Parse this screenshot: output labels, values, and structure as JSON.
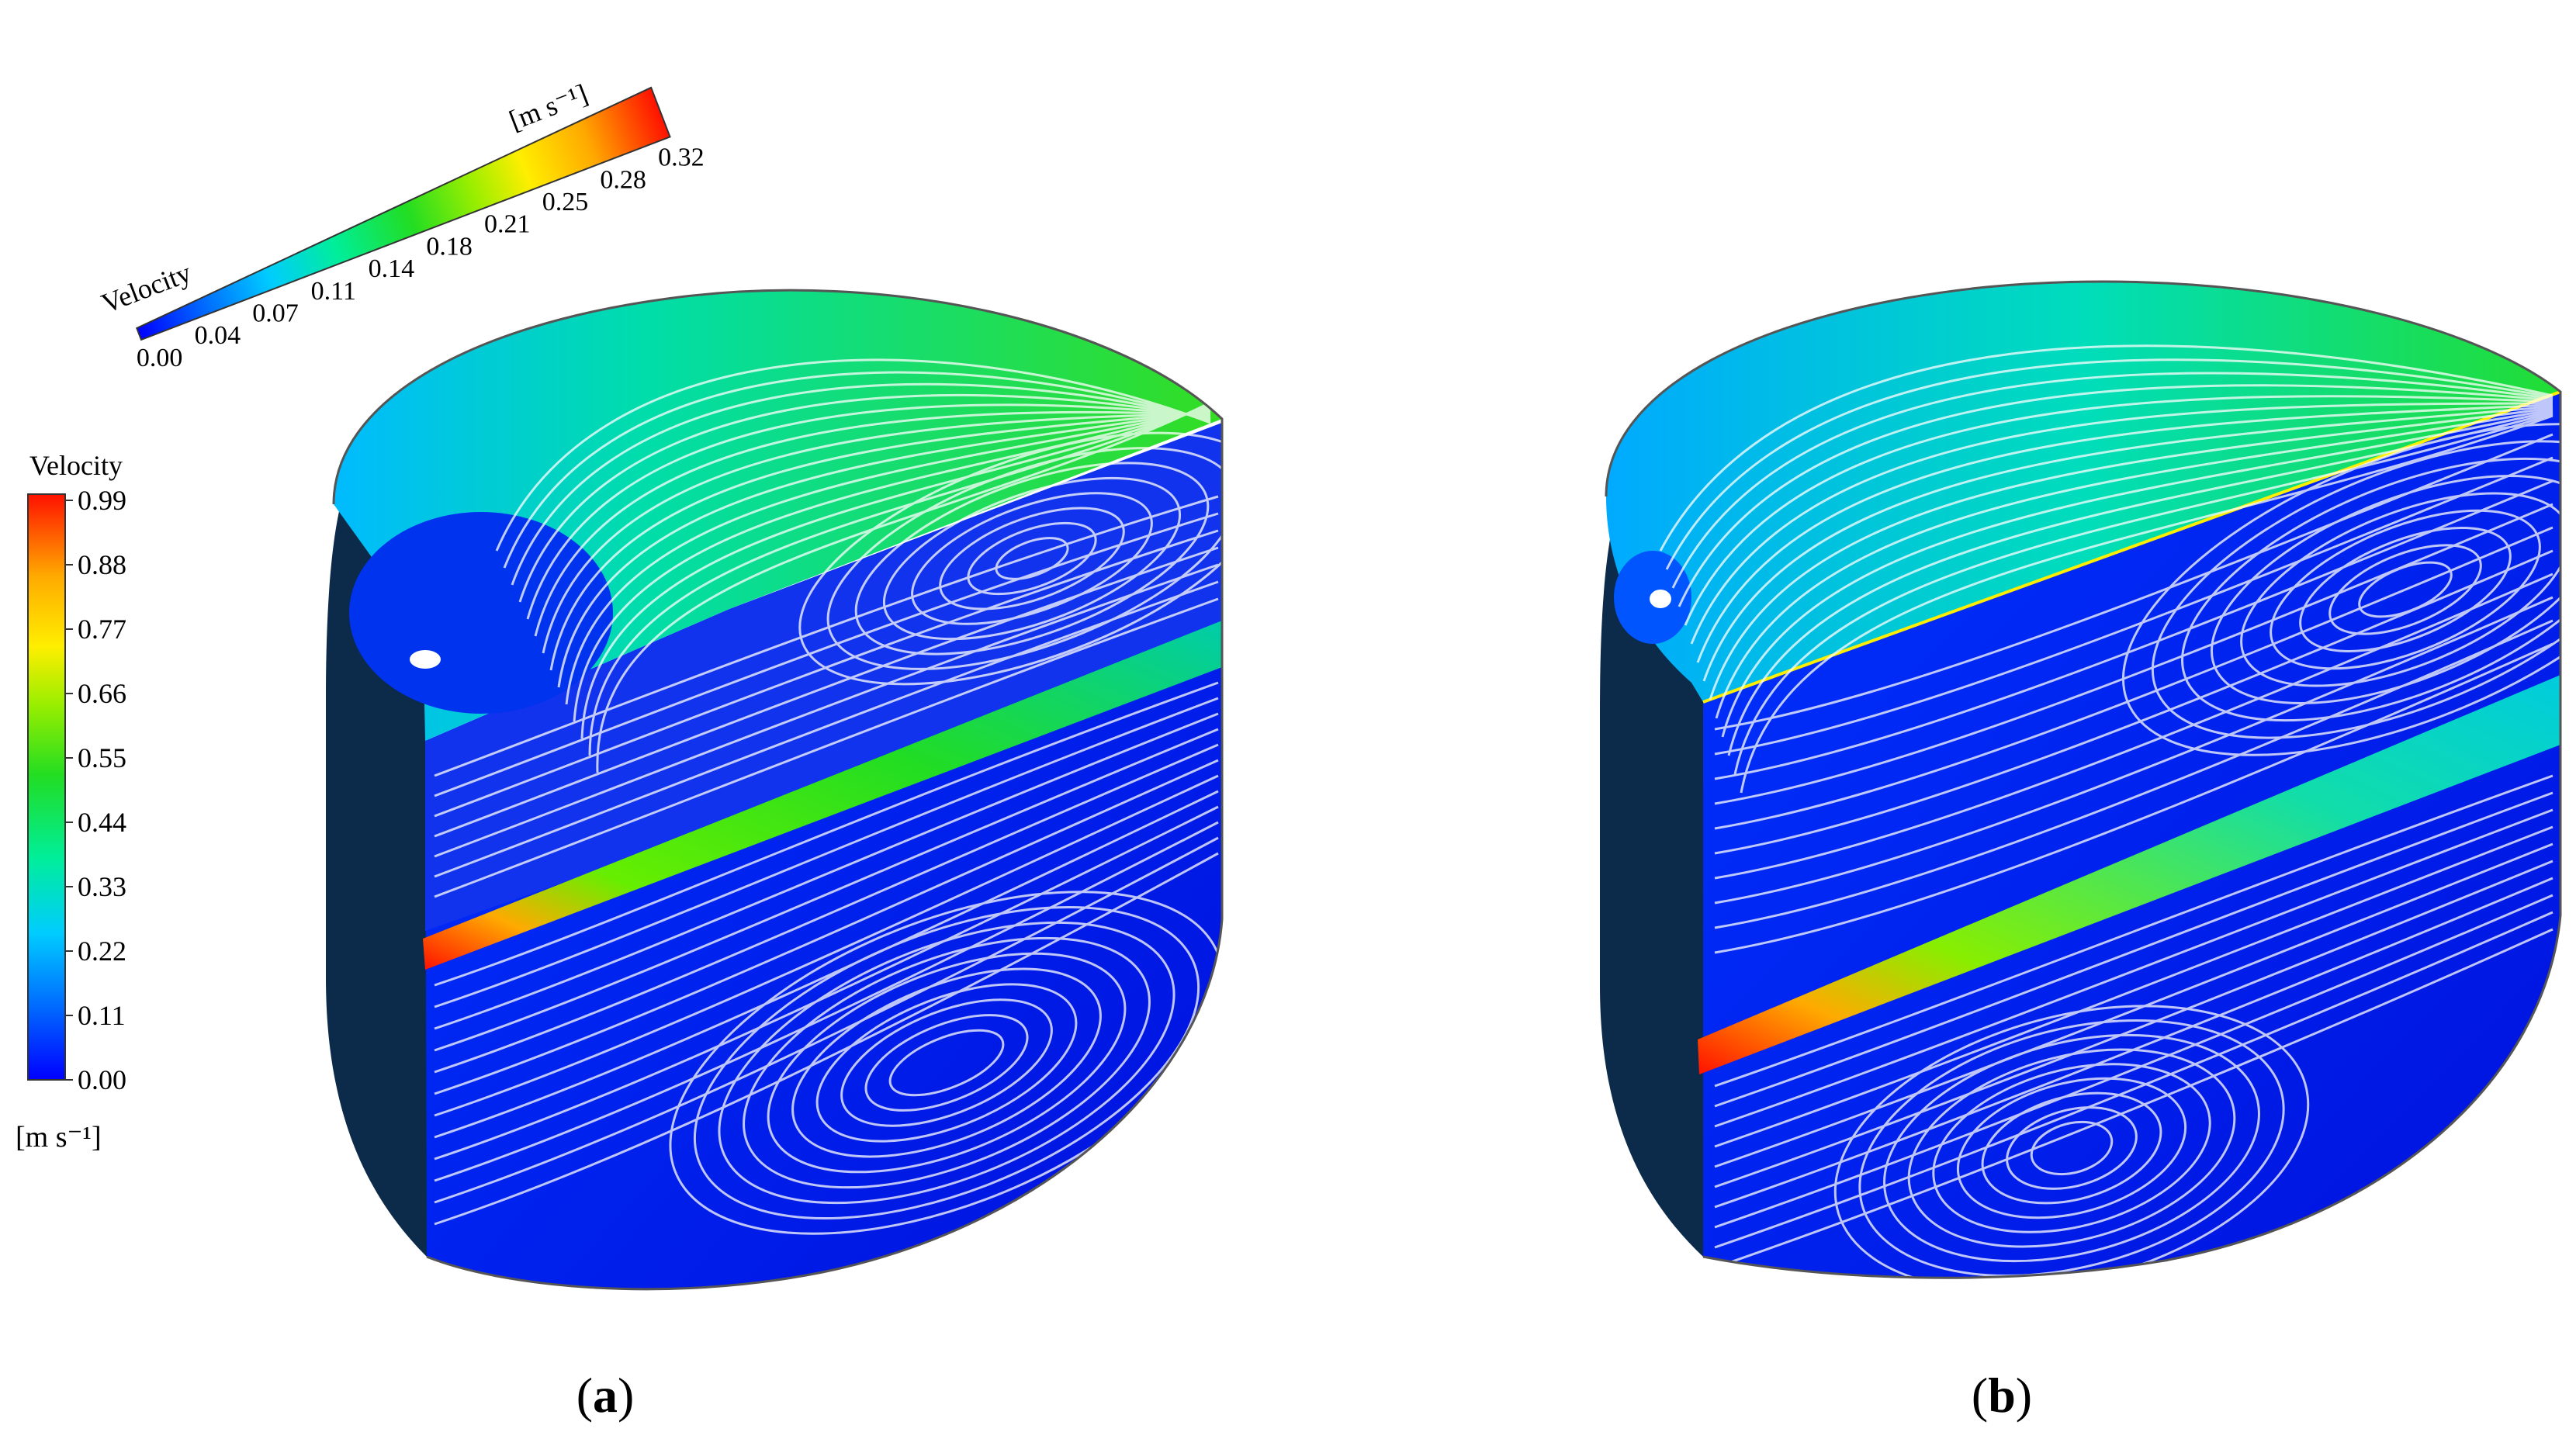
{
  "legend_tilted": {
    "title": "Velocity",
    "unit": "[m s⁻¹]",
    "ticks": [
      "0.00",
      "0.04",
      "0.07",
      "0.11",
      "0.14",
      "0.18",
      "0.21",
      "0.25",
      "0.28",
      "0.32"
    ]
  },
  "legend_vertical": {
    "title": "Velocity",
    "unit": "[m s⁻¹]",
    "ticks": [
      "0.99",
      "0.88",
      "0.77",
      "0.66",
      "0.55",
      "0.44",
      "0.33",
      "0.22",
      "0.11",
      "0.00"
    ]
  },
  "panels": [
    {
      "label_open": "(",
      "label_letter": "a",
      "label_close": ")"
    },
    {
      "label_open": "(",
      "label_letter": "b",
      "label_close": ")"
    }
  ],
  "colors": {
    "background": "#ffffff",
    "dark_side": "#0c2a4a",
    "jet_hot": "#ff2a00",
    "top_flow": "#22cc33",
    "lower_flow": "#0022ee",
    "outline": "#555555"
  },
  "colormap": [
    "#0000ff",
    "#0077ff",
    "#00ccff",
    "#00ffaa",
    "#33ff33",
    "#aaff00",
    "#ffff00",
    "#ffaa00",
    "#ff5500",
    "#ff0000"
  ]
}
